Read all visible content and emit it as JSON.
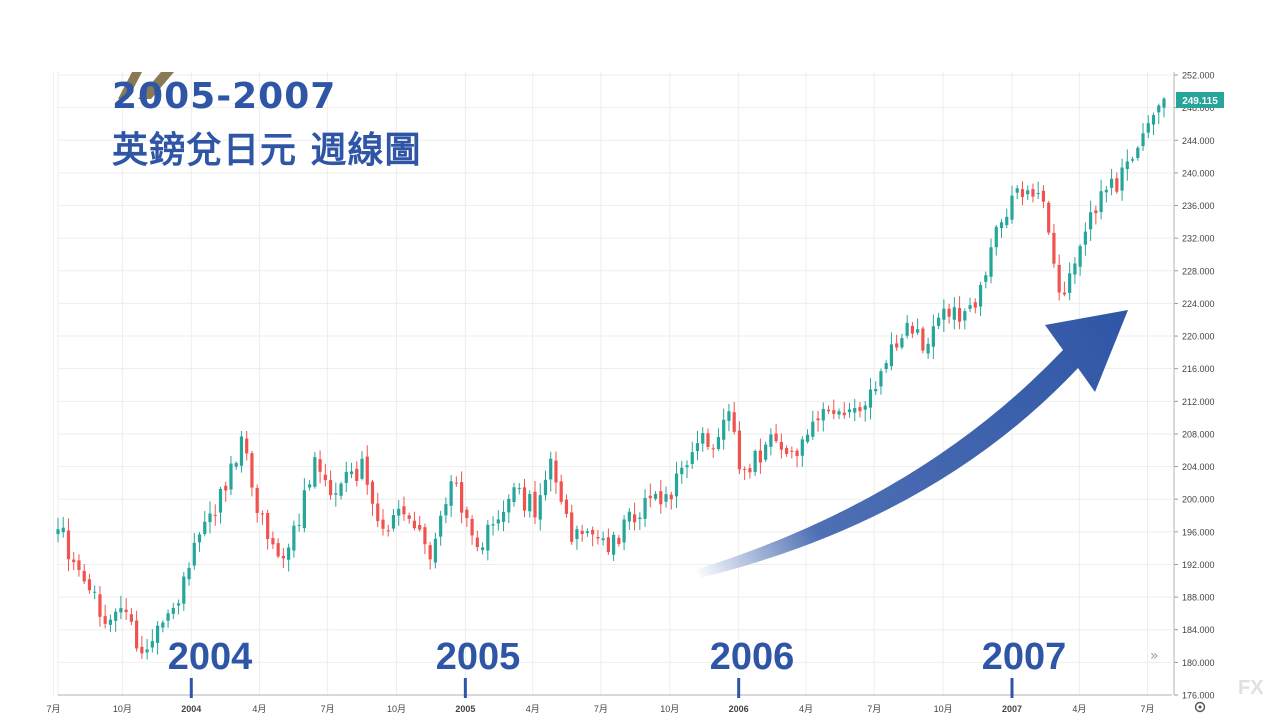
{
  "title": {
    "line1": "2005-2007",
    "line2": "英鎊兌日元 週線圖"
  },
  "colors": {
    "up": "#26a69a",
    "down": "#ef5350",
    "title": "#2f56a6",
    "arrow": "#2f56a6",
    "logo": "#8a7a53",
    "price_tag": "#26a69a"
  },
  "current_price": "249.115",
  "year_labels": [
    "2004",
    "2005",
    "2006",
    "2007"
  ],
  "watermark": "FX",
  "chart_data": {
    "type": "candlestick",
    "title": "英鎊兌日元 週線圖",
    "ylim": [
      176,
      252
    ],
    "y_ticks": [
      "176.000",
      "180.000",
      "184.000",
      "188.000",
      "192.000",
      "196.000",
      "200.000",
      "204.000",
      "208.000",
      "212.000",
      "216.000",
      "220.000",
      "224.000",
      "228.000",
      "232.000",
      "236.000",
      "240.000",
      "244.000",
      "248.000",
      "252.000"
    ],
    "x_ticks": [
      "7月",
      "10月",
      "2004",
      "4月",
      "7月",
      "10月",
      "2005",
      "4月",
      "7月",
      "10月",
      "2006",
      "4月",
      "7月",
      "10月",
      "2007",
      "4月",
      "7月"
    ],
    "anchors": [
      [
        "2003-07-07",
        197
      ],
      [
        "2003-08-11",
        189
      ],
      [
        "2003-09-15",
        185
      ],
      [
        "2003-10-06",
        187
      ],
      [
        "2003-10-27",
        181
      ],
      [
        "2003-12-08",
        186
      ],
      [
        "2004-01-05",
        194
      ],
      [
        "2004-02-09",
        200
      ],
      [
        "2004-03-08",
        207
      ],
      [
        "2004-03-29",
        199
      ],
      [
        "2004-05-03",
        192
      ],
      [
        "2004-06-14",
        204
      ],
      [
        "2004-07-12",
        201
      ],
      [
        "2004-08-16",
        204
      ],
      [
        "2004-09-13",
        196
      ],
      [
        "2004-10-11",
        199
      ],
      [
        "2004-11-15",
        193
      ],
      [
        "2004-12-13",
        203
      ],
      [
        "2005-01-17",
        193
      ],
      [
        "2005-02-28",
        201
      ],
      [
        "2005-04-04",
        199
      ],
      [
        "2005-04-25",
        205
      ],
      [
        "2005-05-23",
        196
      ],
      [
        "2005-06-20",
        196
      ],
      [
        "2005-07-11",
        194
      ],
      [
        "2005-08-22",
        199
      ],
      [
        "2005-10-03",
        201
      ],
      [
        "2005-11-07",
        208
      ],
      [
        "2005-11-28",
        207
      ],
      [
        "2005-12-19",
        211
      ],
      [
        "2006-01-02",
        203
      ],
      [
        "2006-02-13",
        207
      ],
      [
        "2006-03-13",
        205
      ],
      [
        "2006-04-03",
        208
      ],
      [
        "2006-05-15",
        212
      ],
      [
        "2006-06-05",
        210
      ],
      [
        "2006-07-17",
        217
      ],
      [
        "2006-08-14",
        222
      ],
      [
        "2006-09-04",
        219
      ],
      [
        "2006-10-02",
        223
      ],
      [
        "2006-11-13",
        223
      ],
      [
        "2006-12-04",
        231
      ],
      [
        "2007-01-01",
        237
      ],
      [
        "2007-01-22",
        238
      ],
      [
        "2007-02-12",
        237
      ],
      [
        "2007-03-05",
        225
      ],
      [
        "2007-03-26",
        228
      ],
      [
        "2007-04-23",
        236
      ],
      [
        "2007-05-21",
        239
      ],
      [
        "2007-06-04",
        241
      ],
      [
        "2007-06-18",
        244
      ],
      [
        "2007-07-09",
        248
      ],
      [
        "2007-07-23",
        249.1
      ]
    ]
  }
}
